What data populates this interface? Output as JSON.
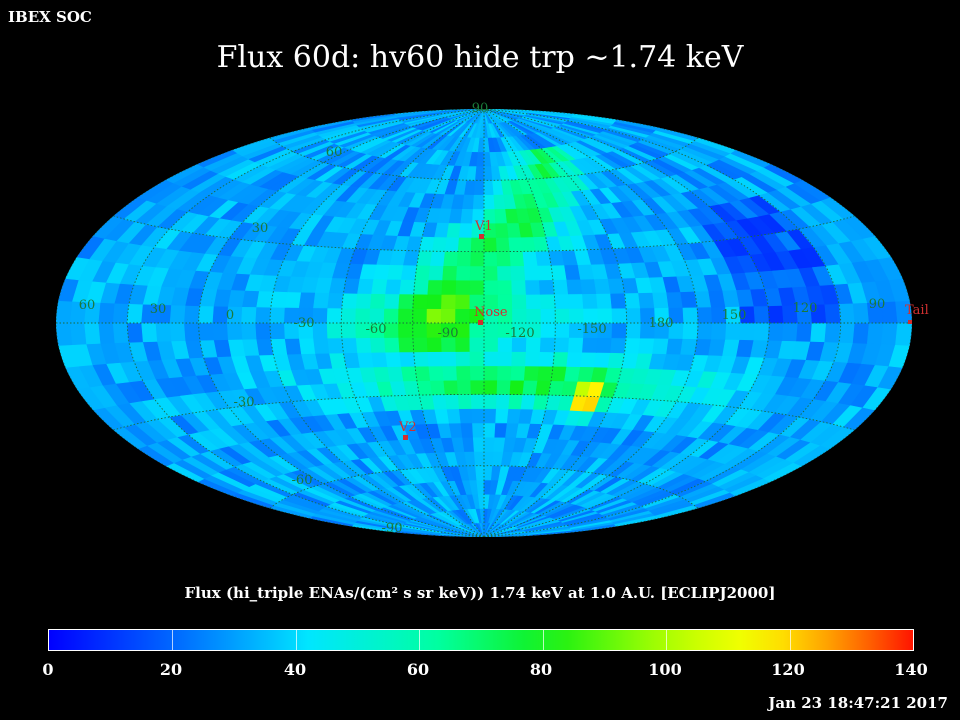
{
  "header": {
    "org_label": "IBEX SOC",
    "title": "Flux   60d: hv60 hide trp ~1.74 keV"
  },
  "map": {
    "projection": "aitoff",
    "longitude_labels": [
      "60",
      "30",
      "0",
      "-30",
      "-60",
      "-90",
      "-120",
      "-150",
      "180",
      "150",
      "120",
      "90"
    ],
    "latitude_labels": [
      "90",
      "60",
      "30",
      "-30",
      "-60",
      "-90"
    ],
    "markers": [
      {
        "label": "V1",
        "color": "#d03030"
      },
      {
        "label": "Nose",
        "color": "#d03030"
      },
      {
        "label": "V2",
        "color": "#d03030"
      },
      {
        "label": "Tail",
        "color": "#d03030"
      }
    ],
    "gridline_color": "#1a6a40",
    "label_color": "#1a7a3a"
  },
  "colorbar": {
    "title": "Flux (hi_triple ENAs/(cm² s sr keV))  1.74 keV at 1.0 A.U. [ECLIPJ2000]",
    "ticks": [
      "0",
      "20",
      "40",
      "60",
      "80",
      "100",
      "120",
      "140"
    ],
    "min": 0,
    "max": 140
  },
  "footer": {
    "timestamp": "Jan 23 18:47:21 2017"
  }
}
